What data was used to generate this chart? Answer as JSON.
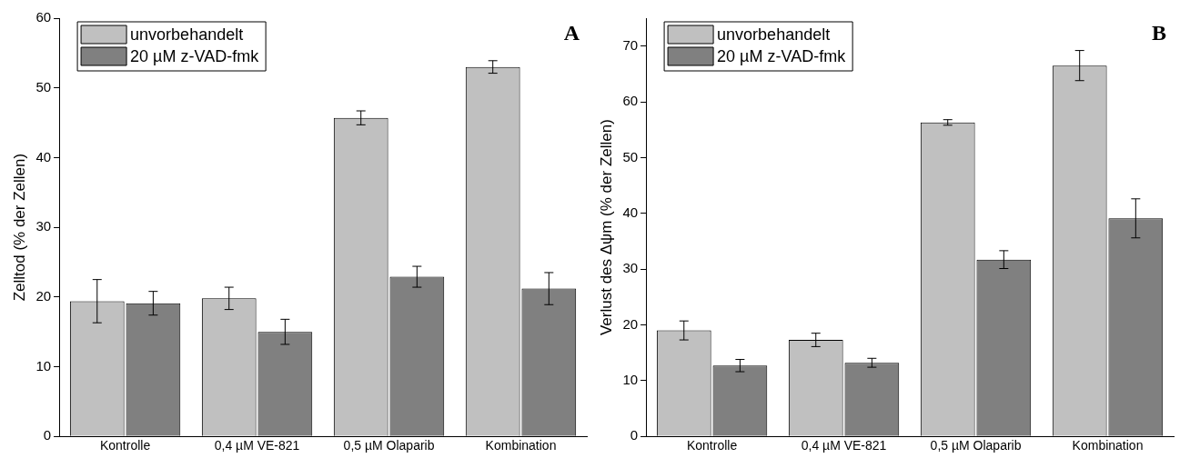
{
  "chart_data": [
    {
      "type": "bar",
      "categories": [
        "Kontrolle",
        "0,4 µM VE-821",
        "0,5 µM Olaparib",
        "Kombination"
      ],
      "ylabel": "Zelltod (% der Zellen)",
      "ylim": [
        0,
        60
      ],
      "yticks": [
        0,
        10,
        20,
        30,
        40,
        50,
        60
      ],
      "grid": false,
      "legend": "top left",
      "annotations": [
        "A"
      ],
      "series": [
        {
          "name": "unvorbehandelt",
          "color": "#c0c0c0",
          "values": [
            19.4,
            19.8,
            45.7,
            53.0
          ],
          "errors": [
            3.1,
            1.6,
            1.0,
            0.9
          ]
        },
        {
          "name": "20 µM z-VAD-fmk",
          "color": "#808080",
          "values": [
            19.1,
            15.0,
            22.9,
            21.2
          ],
          "errors": [
            1.7,
            1.8,
            1.5,
            2.3
          ]
        }
      ]
    },
    {
      "type": "bar",
      "categories": [
        "Kontrolle",
        "0,4 µM VE-821",
        "0,5 µM Olaparib",
        "Kombination"
      ],
      "ylabel": "Verlust des Δψm (% der Zellen)",
      "ylim": [
        0,
        75
      ],
      "yticks": [
        0,
        10,
        20,
        30,
        40,
        50,
        60,
        70
      ],
      "grid": false,
      "legend": "top left",
      "annotations": [
        "B"
      ],
      "series": [
        {
          "name": "unvorbehandelt",
          "color": "#c0c0c0",
          "values": [
            19.0,
            17.3,
            56.3,
            66.5
          ],
          "errors": [
            1.7,
            1.2,
            0.5,
            2.7
          ]
        },
        {
          "name": "20 µM z-VAD-fmk",
          "color": "#808080",
          "values": [
            12.7,
            13.2,
            31.7,
            39.1
          ],
          "errors": [
            1.1,
            0.8,
            1.6,
            3.5
          ]
        }
      ]
    }
  ]
}
